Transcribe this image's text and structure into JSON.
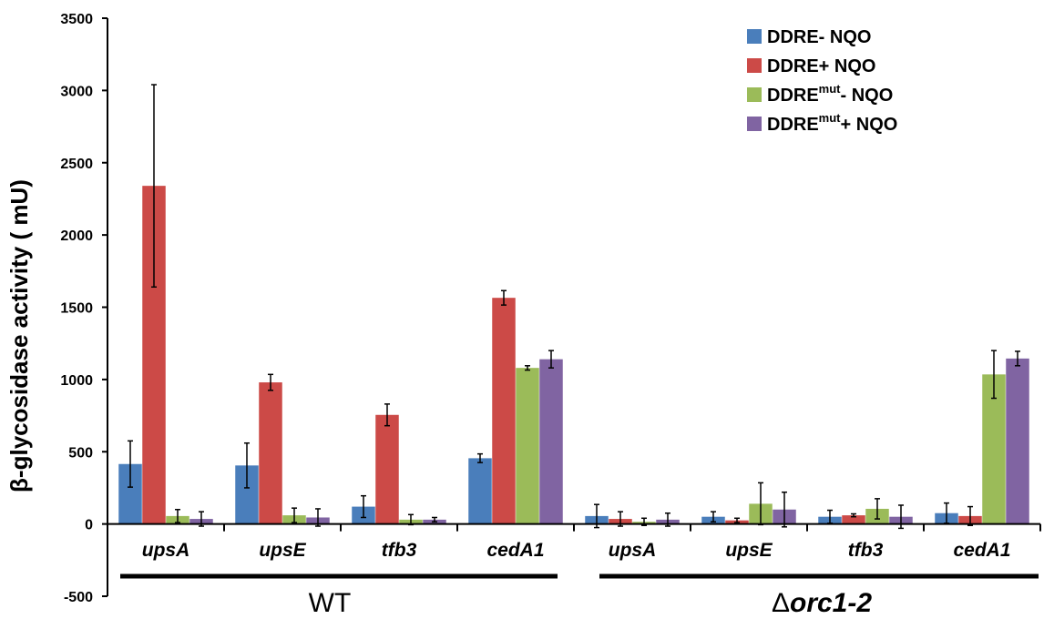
{
  "chart_data": {
    "type": "bar",
    "ylabel": "β-glycosidase activity ( mU)",
    "ylim": [
      -500,
      3500
    ],
    "yticks": [
      "-500",
      "0",
      "500",
      "1000",
      "1500",
      "2000",
      "2500",
      "3000",
      "3500"
    ],
    "categories": [
      "upsA",
      "upsE",
      "tfb3",
      "cedA1",
      "upsA",
      "upsE",
      "tfb3",
      "cedA1"
    ],
    "groups": [
      {
        "label": "WT",
        "categories": [
          0,
          1,
          2,
          3
        ]
      },
      {
        "label_prefix": "Δ",
        "label_main": "orc1-2",
        "categories": [
          4,
          5,
          6,
          7
        ]
      }
    ],
    "series": [
      {
        "name": "DDRE- NQO",
        "legend_base": "DDRE",
        "legend_sup": "",
        "legend_tail": "- NQO",
        "color": "#4a7ebb",
        "values": [
          415,
          405,
          120,
          455,
          55,
          50,
          50,
          75
        ],
        "errors": [
          160,
          155,
          75,
          30,
          80,
          35,
          45,
          70
        ]
      },
      {
        "name": "DDRE+ NQO",
        "legend_base": "DDRE",
        "legend_sup": "",
        "legend_tail": "+ NQO",
        "color": "#cc4a47",
        "values": [
          2340,
          980,
          755,
          1565,
          35,
          25,
          60,
          55
        ],
        "errors": [
          700,
          55,
          75,
          50,
          50,
          15,
          10,
          65
        ]
      },
      {
        "name": "DDREmut- NQO",
        "legend_base": "DDRE",
        "legend_sup": "mut",
        "legend_tail": "- NQO",
        "color": "#9bbb59",
        "values": [
          55,
          60,
          30,
          1080,
          15,
          140,
          105,
          1035
        ],
        "errors": [
          45,
          50,
          35,
          15,
          25,
          145,
          70,
          165
        ]
      },
      {
        "name": "DDREmut+ NQO",
        "legend_base": "DDRE",
        "legend_sup": "mut",
        "legend_tail": "+ NQO",
        "color": "#8064a2",
        "values": [
          35,
          45,
          30,
          1140,
          30,
          100,
          50,
          1145
        ],
        "errors": [
          50,
          60,
          15,
          60,
          45,
          120,
          80,
          50
        ]
      }
    ],
    "legend_position": "top-right",
    "grid": false
  }
}
